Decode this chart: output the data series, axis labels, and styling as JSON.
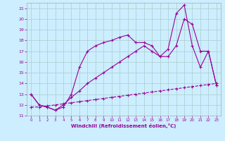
{
  "background_color": "#cceeff",
  "grid_color": "#aacccc",
  "line_color": "#990099",
  "xlim": [
    -0.5,
    23.5
  ],
  "ylim": [
    11,
    21.5
  ],
  "xlabel": "Windchill (Refroidissement éolien,°C)",
  "yticks": [
    11,
    12,
    13,
    14,
    15,
    16,
    17,
    18,
    19,
    20,
    21
  ],
  "xticks": [
    0,
    1,
    2,
    3,
    4,
    5,
    6,
    7,
    8,
    9,
    10,
    11,
    12,
    13,
    14,
    15,
    16,
    17,
    18,
    19,
    20,
    21,
    22,
    23
  ],
  "line1_x": [
    0,
    1,
    2,
    3,
    4,
    5,
    6,
    7,
    8,
    9,
    10,
    11,
    12,
    13,
    14,
    15,
    16,
    17,
    18,
    19,
    20,
    21,
    22,
    23
  ],
  "line1_y": [
    13.0,
    12.0,
    11.8,
    11.5,
    12.0,
    12.7,
    13.3,
    14.0,
    14.5,
    15.0,
    15.5,
    16.0,
    16.5,
    17.0,
    17.5,
    17.0,
    16.5,
    16.5,
    17.5,
    20.0,
    19.5,
    17.0,
    17.0,
    13.8
  ],
  "line2_x": [
    0,
    1,
    2,
    3,
    4,
    5,
    6,
    7,
    8,
    9,
    10,
    11,
    12,
    13,
    14,
    15,
    16,
    17,
    18,
    19,
    20,
    21,
    22,
    23
  ],
  "line2_y": [
    13.0,
    12.0,
    11.8,
    11.5,
    11.8,
    13.0,
    15.5,
    17.0,
    17.5,
    17.8,
    18.0,
    18.3,
    18.5,
    17.8,
    17.8,
    17.5,
    16.5,
    17.2,
    20.5,
    21.3,
    17.5,
    15.5,
    17.0,
    13.8
  ],
  "line3_x": [
    0,
    1,
    2,
    3,
    4,
    5,
    6,
    7,
    8,
    9,
    10,
    11,
    12,
    13,
    14,
    15,
    16,
    17,
    18,
    19,
    20,
    21,
    22,
    23
  ],
  "line3_y": [
    11.8,
    11.8,
    11.9,
    12.0,
    12.1,
    12.2,
    12.3,
    12.4,
    12.5,
    12.6,
    12.7,
    12.8,
    12.9,
    13.0,
    13.1,
    13.2,
    13.3,
    13.4,
    13.5,
    13.6,
    13.7,
    13.8,
    13.9,
    14.0
  ]
}
